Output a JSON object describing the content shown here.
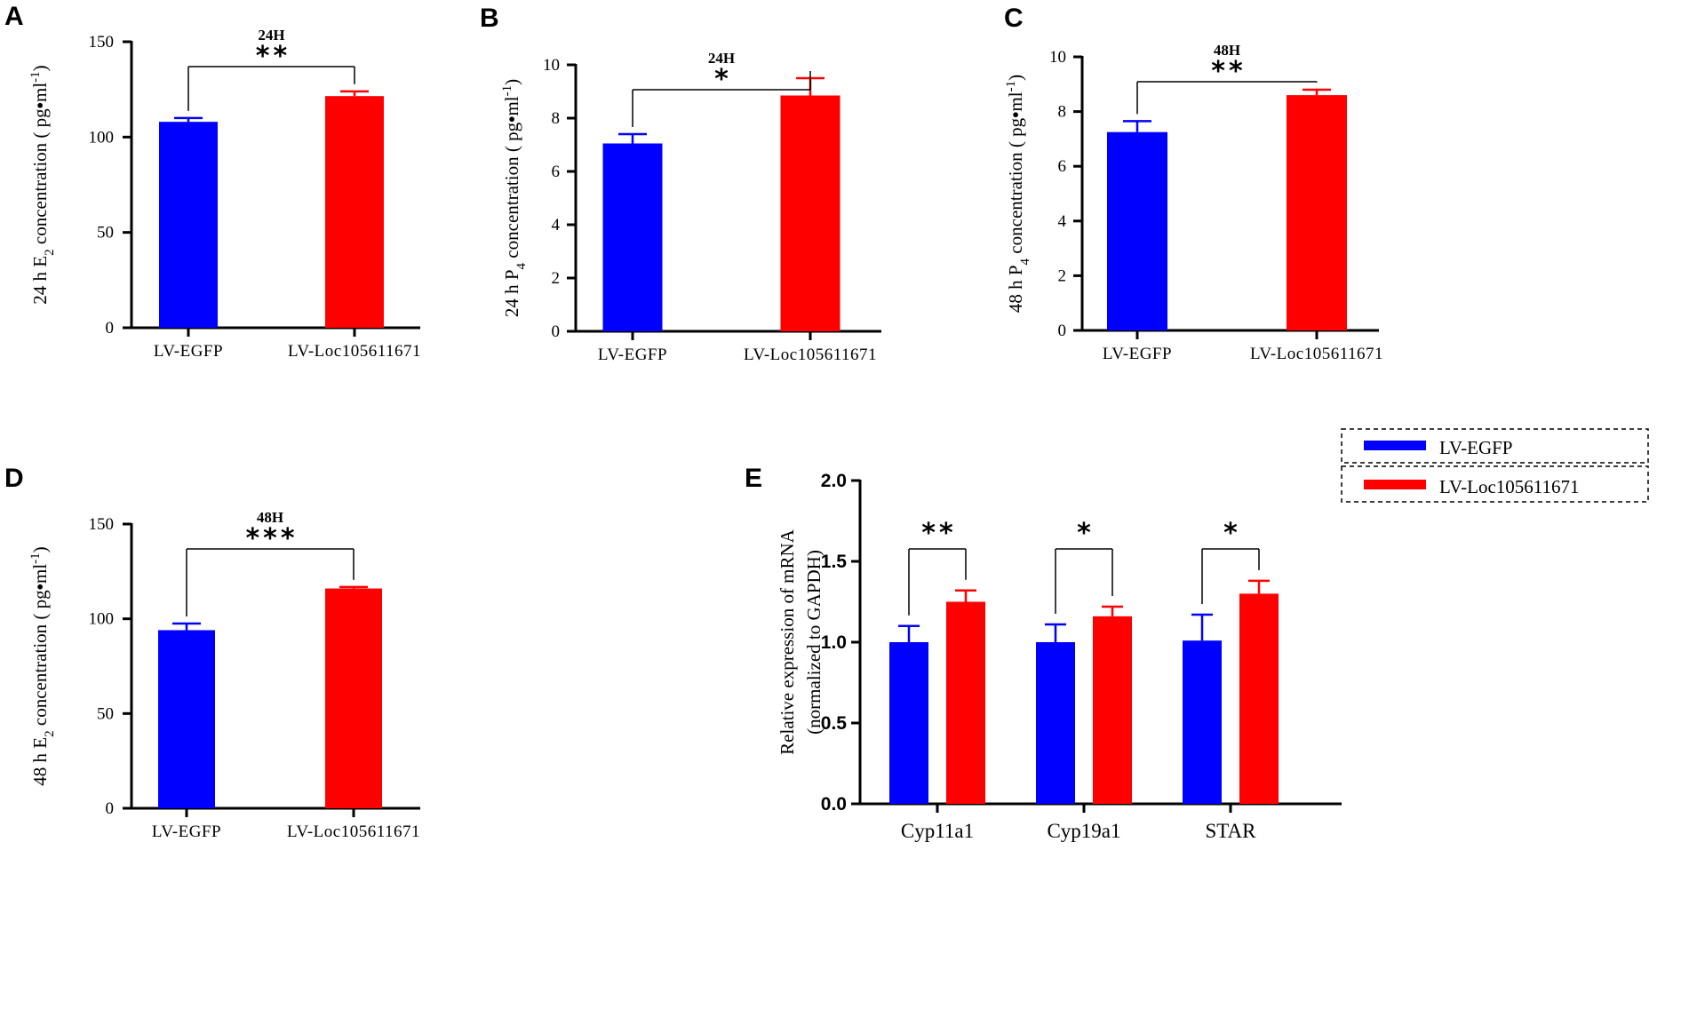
{
  "colors": {
    "LV-EGFP": "#0000ff",
    "LV-Loc105611671": "#ff0000",
    "axis": "#000000"
  },
  "chart_data": [
    {
      "id": "A",
      "type": "bar",
      "panel_label": "A",
      "categories": [
        "LV-EGFP",
        "LV-Loc105611671"
      ],
      "values": [
        108,
        121.5
      ],
      "errors": [
        2,
        2.5
      ],
      "ylim": [
        0,
        150
      ],
      "yticks": [
        0,
        50,
        100,
        150
      ],
      "ytick_labels": [
        "0",
        "50",
        "100",
        "150"
      ],
      "ylabel": {
        "prefix": "24 h E",
        "sub": "2",
        "mid": " concentration ( pg",
        "dot": "•",
        "unit": "ml",
        "sup": "-1",
        "suffix": ")"
      },
      "annotation": {
        "timepoint": "24H",
        "significance": "**"
      }
    },
    {
      "id": "B",
      "type": "bar",
      "panel_label": "B",
      "categories": [
        "LV-EGFP",
        "LV-Loc105611671"
      ],
      "values": [
        7.05,
        8.85
      ],
      "errors": [
        0.35,
        0.65
      ],
      "ylim": [
        0,
        10
      ],
      "yticks": [
        0,
        2,
        4,
        6,
        8,
        10
      ],
      "ytick_labels": [
        "0",
        "2",
        "4",
        "6",
        "8",
        "10"
      ],
      "ylabel": {
        "prefix": "24 h P",
        "sub": "4",
        "mid": " concentration ( pg",
        "dot": "•",
        "unit": "ml",
        "sup": "-1",
        "suffix": ")"
      },
      "annotation": {
        "timepoint": "24H",
        "significance": "*"
      }
    },
    {
      "id": "C",
      "type": "bar",
      "panel_label": "C",
      "categories": [
        "LV-EGFP",
        "LV-Loc105611671"
      ],
      "values": [
        7.25,
        8.6
      ],
      "errors": [
        0.4,
        0.2
      ],
      "ylim": [
        0,
        10
      ],
      "yticks": [
        0,
        2,
        4,
        6,
        8,
        10
      ],
      "ytick_labels": [
        "0",
        "2",
        "4",
        "6",
        "8",
        "10"
      ],
      "ylabel": {
        "prefix": "48 h P",
        "sub": "4",
        "mid": " concentration ( pg",
        "dot": "•",
        "unit": "ml",
        "sup": "-1",
        "suffix": ")"
      },
      "annotation": {
        "timepoint": "48H",
        "significance": "**"
      }
    },
    {
      "id": "D",
      "type": "bar",
      "panel_label": "D",
      "categories": [
        "LV-EGFP",
        "LV-Loc105611671"
      ],
      "values": [
        94,
        116
      ],
      "errors": [
        3.5,
        0.8
      ],
      "ylim": [
        0,
        150
      ],
      "yticks": [
        0,
        50,
        100,
        150
      ],
      "ytick_labels": [
        "0",
        "50",
        "100",
        "150"
      ],
      "ylabel": {
        "prefix": "48 h E",
        "sub": "2",
        "mid": " concentration ( pg",
        "dot": "•",
        "unit": "ml",
        "sup": "-1",
        "suffix": ")"
      },
      "annotation": {
        "timepoint": "48H",
        "significance": "***"
      }
    },
    {
      "id": "E",
      "type": "bar",
      "panel_label": "E",
      "categories": [
        "Cyp11a1",
        "Cyp19a1",
        "STAR"
      ],
      "series": [
        {
          "name": "LV-EGFP",
          "values": [
            1.0,
            1.0,
            1.01
          ],
          "errors": [
            0.1,
            0.11,
            0.16
          ]
        },
        {
          "name": "LV-Loc105611671",
          "values": [
            1.25,
            1.16,
            1.3
          ],
          "errors": [
            0.07,
            0.06,
            0.08
          ]
        }
      ],
      "ylim": [
        0,
        2.0
      ],
      "yticks": [
        0,
        0.5,
        1.0,
        1.5,
        2.0
      ],
      "ytick_labels": [
        "0.0",
        "0.5",
        "1.0",
        "1.5",
        "2.0"
      ],
      "ylabel_lines": [
        "Relative expression of mRNA",
        "(normalized to GAPDH)"
      ],
      "significance": [
        "**",
        "*",
        "*"
      ],
      "legend": [
        "LV-EGFP",
        "LV-Loc105611671"
      ],
      "legend_position": "top-right"
    }
  ]
}
